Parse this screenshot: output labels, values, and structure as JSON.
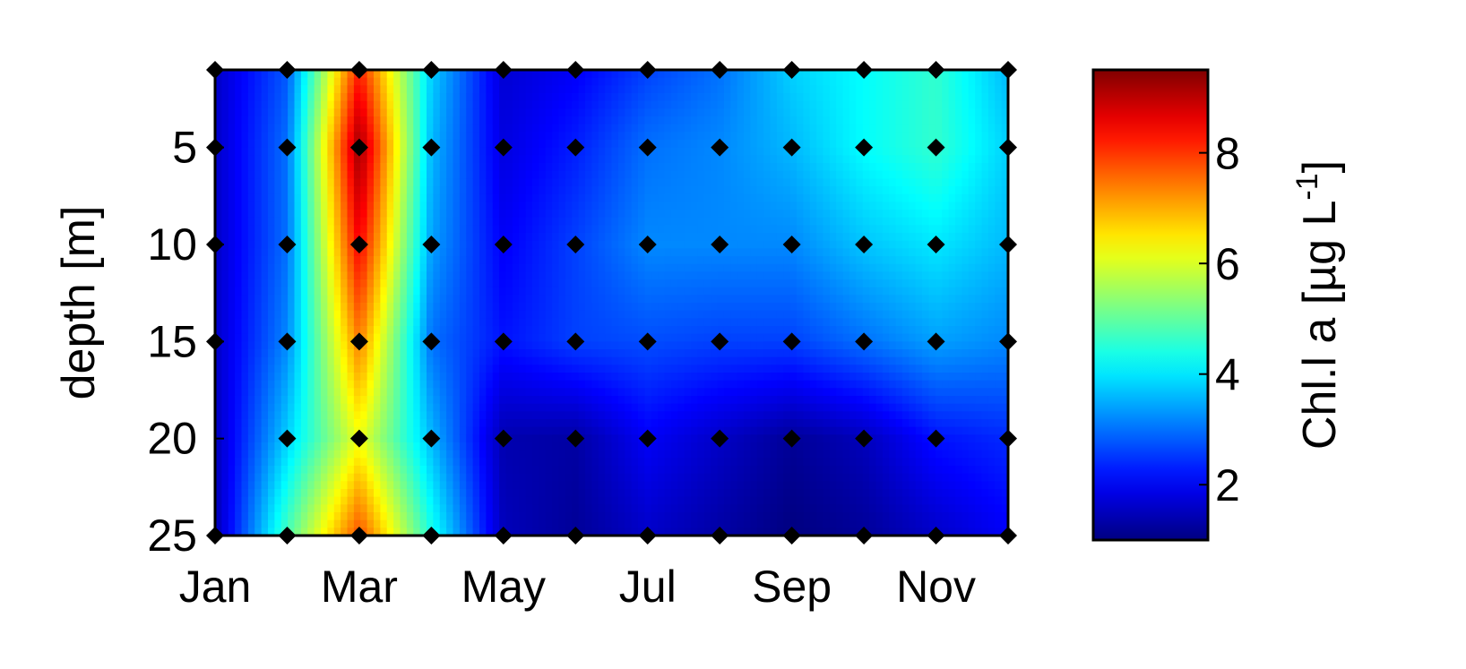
{
  "chart_data": {
    "type": "heatmap",
    "title": "",
    "xlabel": "",
    "ylabel": "depth [m]",
    "x_ticks": [
      "Jan",
      "Mar",
      "May",
      "Jul",
      "Sep",
      "Nov"
    ],
    "y_ticks": [
      "5",
      "10",
      "15",
      "20",
      "25"
    ],
    "y_reversed": true,
    "xlim_month_index": [
      0,
      11
    ],
    "ylim_depth_m": [
      1,
      25
    ],
    "sample_months": [
      "Jan",
      "Feb",
      "Mar",
      "Apr",
      "May",
      "Jun",
      "Jul",
      "Aug",
      "Sep",
      "Oct",
      "Nov",
      "Dec"
    ],
    "sample_depths_m": [
      1,
      5,
      10,
      15,
      20,
      25
    ],
    "sample_mask": [
      [
        1,
        1,
        1,
        1,
        1,
        1,
        1,
        1,
        1,
        1,
        1,
        1
      ],
      [
        1,
        1,
        1,
        1,
        1,
        1,
        1,
        1,
        1,
        1,
        1,
        1
      ],
      [
        1,
        1,
        1,
        1,
        1,
        1,
        1,
        1,
        1,
        1,
        1,
        1
      ],
      [
        1,
        1,
        1,
        1,
        1,
        1,
        1,
        1,
        1,
        1,
        1,
        1
      ],
      [
        0,
        1,
        1,
        1,
        1,
        1,
        1,
        1,
        1,
        1,
        1,
        1
      ],
      [
        1,
        1,
        1,
        1,
        1,
        1,
        1,
        1,
        1,
        1,
        1,
        1
      ]
    ],
    "values": [
      [
        1.6,
        2.8,
        8.2,
        3.8,
        1.7,
        2.0,
        2.6,
        3.0,
        3.8,
        4.2,
        4.6,
        3.6
      ],
      [
        1.6,
        3.0,
        9.3,
        3.6,
        1.8,
        2.3,
        3.0,
        3.2,
        3.6,
        4.2,
        4.6,
        3.8
      ],
      [
        1.6,
        3.0,
        8.5,
        3.4,
        2.0,
        2.6,
        3.2,
        3.2,
        3.2,
        3.7,
        4.0,
        3.6
      ],
      [
        1.6,
        3.2,
        7.4,
        3.0,
        2.2,
        2.6,
        2.7,
        2.6,
        2.6,
        3.0,
        3.4,
        3.2
      ],
      [
        1.5,
        3.8,
        6.2,
        3.6,
        1.4,
        1.3,
        2.0,
        1.6,
        1.2,
        1.5,
        2.2,
        2.4
      ],
      [
        1.4,
        4.8,
        7.8,
        4.4,
        1.5,
        1.2,
        1.6,
        1.3,
        1.0,
        1.2,
        1.6,
        2.0
      ]
    ],
    "colorbar": {
      "label": "Chl.l a [µg L",
      "label_superscript": "-1",
      "label_close": "]",
      "ticks": [
        "2",
        "4",
        "6",
        "8"
      ],
      "tick_values": [
        2,
        4,
        6,
        8
      ],
      "range": [
        1,
        9.5
      ],
      "colormap": "jet"
    },
    "marker_color": "#000000"
  }
}
